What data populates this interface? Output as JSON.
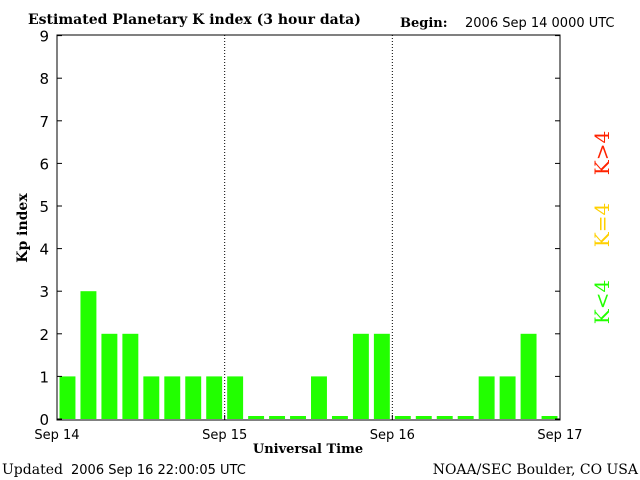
{
  "chart_data": {
    "type": "bar",
    "title": "Estimated Planetary K index (3 hour data)",
    "begin_label": "Begin:",
    "begin_value": "2006 Sep 14 0000 UTC",
    "ylabel": "Kp index",
    "xlabel": "Universal Time",
    "ylim": [
      0,
      9
    ],
    "yticks": [
      "0",
      "1",
      "2",
      "3",
      "4",
      "5",
      "6",
      "7",
      "8",
      "9"
    ],
    "xticks": [
      "Sep 14",
      "Sep 15",
      "Sep 16",
      "Sep 17"
    ],
    "day_separators": true,
    "values": [
      1,
      3,
      2,
      2,
      1,
      1,
      1,
      1,
      1,
      0,
      0,
      0,
      1,
      0,
      2,
      2,
      0,
      0,
      0,
      0,
      1,
      1,
      2,
      0
    ],
    "legend": [
      {
        "label": "K>4",
        "color": "#ff2200"
      },
      {
        "label": "K=4",
        "color": "#ffd000"
      },
      {
        "label": "K<4",
        "color": "#22ff00"
      }
    ],
    "bar_color": "#22ff00"
  },
  "footer": {
    "updated_label": "Updated",
    "updated_value": "2006 Sep 16 22:00:05 UTC",
    "source": "NOAA/SEC Boulder, CO USA"
  }
}
